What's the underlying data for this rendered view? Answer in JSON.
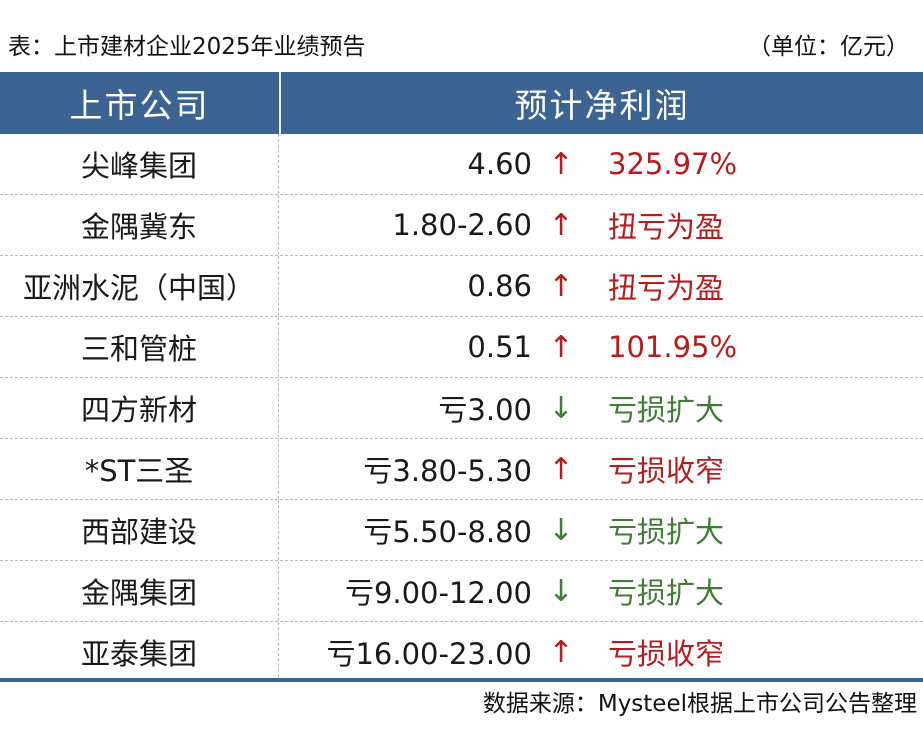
{
  "caption": {
    "title": "表：上市建材企业2025年业绩预告",
    "unit": "（单位：亿元）"
  },
  "header": {
    "company": "上市公司",
    "profit": "预计净利润"
  },
  "colors": {
    "header_bg": "#3b6493",
    "up": "#b71c1c",
    "down": "#3f7d35"
  },
  "rows": [
    {
      "company": "尖峰集团",
      "value": "4.60",
      "arrow": "↑",
      "direction": "up",
      "change": "325.97%"
    },
    {
      "company": "金隅冀东",
      "value": "1.80-2.60",
      "arrow": "↑",
      "direction": "up",
      "change": "扭亏为盈"
    },
    {
      "company": "亚洲水泥（中国）",
      "value": "0.86",
      "arrow": "↑",
      "direction": "up",
      "change": "扭亏为盈"
    },
    {
      "company": "三和管桩",
      "value": "0.51",
      "arrow": "↑",
      "direction": "up",
      "change": "101.95%"
    },
    {
      "company": "四方新材",
      "value": "亏3.00",
      "arrow": "↓",
      "direction": "down",
      "change": "亏损扩大"
    },
    {
      "company": "*ST三圣",
      "value": "亏3.80-5.30",
      "arrow": "↑",
      "direction": "up",
      "change": "亏损收窄"
    },
    {
      "company": "西部建设",
      "value": "亏5.50-8.80",
      "arrow": "↓",
      "direction": "down",
      "change": "亏损扩大"
    },
    {
      "company": "金隅集团",
      "value": "亏9.00-12.00",
      "arrow": "↓",
      "direction": "down",
      "change": "亏损扩大"
    },
    {
      "company": "亚泰集团",
      "value": "亏16.00-23.00",
      "arrow": "↑",
      "direction": "up",
      "change": "亏损收窄"
    }
  ],
  "source": "数据来源：Mysteel根据上市公司公告整理"
}
